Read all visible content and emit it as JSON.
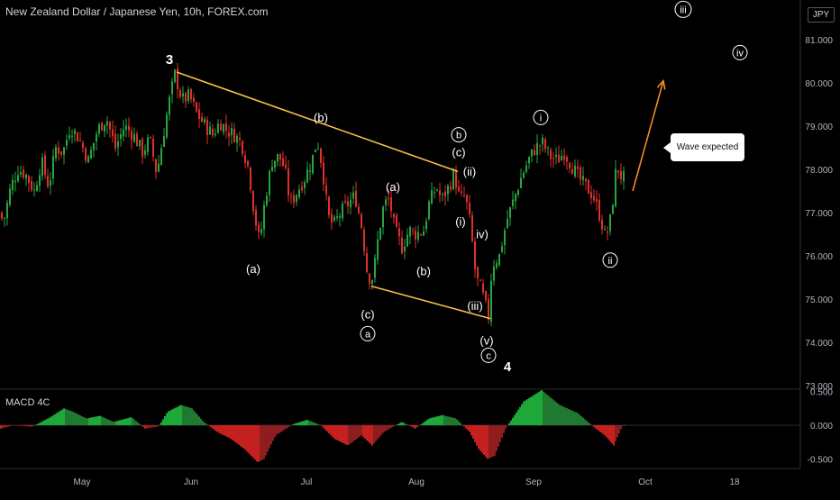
{
  "header": {
    "title": "New Zealand Dollar / Japanese Yen, 10h, FOREX.com",
    "currency": "JPY",
    "indicator": "MACD 4C"
  },
  "callout": {
    "text": "Wave expected"
  },
  "colors": {
    "up": "#26a641",
    "down": "#e0302a",
    "trendline": "#f5c342",
    "arrow": "#f08a24",
    "macd_up": "#1ea83a",
    "macd_down": "#c42020"
  },
  "chart_data": [
    {
      "type": "candlestick",
      "title": "New Zealand Dollar / Japanese Yen, 10h, FOREX.com",
      "y_axis": {
        "ticks": [
          "81.000",
          "80.000",
          "79.000",
          "78.000",
          "77.000",
          "76.000",
          "75.000",
          "74.000",
          "73.000"
        ],
        "range": [
          73.0,
          81.9
        ]
      },
      "x_axis": {
        "ticks": [
          "May",
          "Jun",
          "Jul",
          "Aug",
          "Sep",
          "Oct",
          "18"
        ]
      },
      "path_points": [
        [
          0,
          77.0
        ],
        [
          6,
          76.8
        ],
        [
          14,
          77.6
        ],
        [
          22,
          78.0
        ],
        [
          30,
          77.9
        ],
        [
          40,
          77.5
        ],
        [
          48,
          78.2
        ],
        [
          56,
          77.6
        ],
        [
          64,
          78.5
        ],
        [
          72,
          78.4
        ],
        [
          80,
          79.0
        ],
        [
          90,
          78.7
        ],
        [
          100,
          78.2
        ],
        [
          110,
          78.9
        ],
        [
          120,
          79.2
        ],
        [
          130,
          78.5
        ],
        [
          140,
          79.0
        ],
        [
          150,
          78.8
        ],
        [
          160,
          78.4
        ],
        [
          168,
          78.7
        ],
        [
          176,
          77.9
        ],
        [
          184,
          78.9
        ],
        [
          190,
          79.6
        ],
        [
          196,
          80.2
        ],
        [
          204,
          79.6
        ],
        [
          212,
          79.7
        ],
        [
          220,
          79.3
        ],
        [
          230,
          79.0
        ],
        [
          238,
          78.8
        ],
        [
          246,
          79.1
        ],
        [
          254,
          78.9
        ],
        [
          262,
          78.8
        ],
        [
          270,
          78.6
        ],
        [
          278,
          78.0
        ],
        [
          284,
          77.0
        ],
        [
          290,
          76.3
        ],
        [
          296,
          77.3
        ],
        [
          304,
          78.2
        ],
        [
          312,
          78.3
        ],
        [
          318,
          78.0
        ],
        [
          324,
          77.2
        ],
        [
          332,
          77.5
        ],
        [
          340,
          77.8
        ],
        [
          348,
          78.2
        ],
        [
          354,
          78.7
        ],
        [
          360,
          78.0
        ],
        [
          366,
          76.9
        ],
        [
          372,
          76.7
        ],
        [
          380,
          77.0
        ],
        [
          388,
          77.2
        ],
        [
          396,
          77.4
        ],
        [
          404,
          76.6
        ],
        [
          410,
          75.5
        ],
        [
          416,
          75.5
        ],
        [
          422,
          76.5
        ],
        [
          428,
          77.2
        ],
        [
          434,
          77.3
        ],
        [
          440,
          76.6
        ],
        [
          448,
          76.2
        ],
        [
          456,
          76.6
        ],
        [
          464,
          76.5
        ],
        [
          472,
          76.6
        ],
        [
          478,
          77.2
        ],
        [
          486,
          77.6
        ],
        [
          492,
          77.3
        ],
        [
          500,
          77.6
        ],
        [
          506,
          77.9
        ],
        [
          512,
          77.3
        ],
        [
          518,
          77.4
        ],
        [
          524,
          76.7
        ],
        [
          530,
          75.5
        ],
        [
          536,
          75.2
        ],
        [
          540,
          74.9
        ],
        [
          544,
          74.6
        ],
        [
          548,
          75.8
        ],
        [
          556,
          76.0
        ],
        [
          564,
          76.8
        ],
        [
          572,
          77.3
        ],
        [
          580,
          77.8
        ],
        [
          588,
          78.2
        ],
        [
          596,
          78.5
        ],
        [
          604,
          78.6
        ],
        [
          612,
          78.3
        ],
        [
          620,
          78.2
        ],
        [
          628,
          78.4
        ],
        [
          636,
          78.1
        ],
        [
          644,
          77.8
        ],
        [
          652,
          77.6
        ],
        [
          660,
          77.4
        ],
        [
          668,
          76.9
        ],
        [
          674,
          76.4
        ],
        [
          680,
          76.9
        ],
        [
          686,
          78.1
        ],
        [
          692,
          77.8
        ]
      ],
      "trendlines": [
        {
          "from": [
            196,
            80.25
          ],
          "to": [
            508,
            77.95
          ]
        },
        {
          "from": [
            412,
            75.3
          ],
          "to": [
            544,
            74.55
          ]
        }
      ],
      "projection_arrow": {
        "from": [
          702,
          77.5
        ],
        "to": [
          736,
          80.05
        ]
      },
      "annotations": [
        {
          "text": "3",
          "x": 188,
          "y": 80.55,
          "circled": false,
          "big": true
        },
        {
          "text": "(b)",
          "x": 356,
          "y": 79.2,
          "circled": false
        },
        {
          "text": "b",
          "x": 509,
          "y": 78.8,
          "circled": true
        },
        {
          "text": "(c)",
          "x": 509,
          "y": 78.4,
          "circled": false
        },
        {
          "text": "(ii)",
          "x": 521,
          "y": 77.95,
          "circled": false
        },
        {
          "text": "(a)",
          "x": 436,
          "y": 77.6,
          "circled": false
        },
        {
          "text": "(i)",
          "x": 511,
          "y": 76.8,
          "circled": false
        },
        {
          "text": "iv)",
          "x": 535,
          "y": 76.5,
          "circled": false
        },
        {
          "text": "(a)",
          "x": 281,
          "y": 75.7,
          "circled": false
        },
        {
          "text": "(b)",
          "x": 470,
          "y": 75.65,
          "circled": false
        },
        {
          "text": "(iii)",
          "x": 527,
          "y": 74.85,
          "circled": false
        },
        {
          "text": "(c)",
          "x": 408,
          "y": 74.65,
          "circled": false
        },
        {
          "text": "a",
          "x": 408,
          "y": 74.2,
          "circled": true
        },
        {
          "text": "(v)",
          "x": 540,
          "y": 74.05,
          "circled": false
        },
        {
          "text": "c",
          "x": 542,
          "y": 73.7,
          "circled": true
        },
        {
          "text": "4",
          "x": 563,
          "y": 73.45,
          "circled": false,
          "big": true
        },
        {
          "text": "i",
          "x": 600,
          "y": 79.2,
          "circled": true
        },
        {
          "text": "ii",
          "x": 677,
          "y": 75.9,
          "circled": true
        },
        {
          "text": "iii",
          "x": 758,
          "y": 81.7,
          "circled": true
        },
        {
          "text": "iv",
          "x": 821,
          "y": 80.7,
          "circled": true
        }
      ]
    },
    {
      "type": "bar",
      "title": "MACD 4C",
      "y_axis": {
        "ticks": [
          "0.500",
          "0.000",
          "-0.500"
        ],
        "range": [
          -0.62,
          0.56
        ]
      },
      "x": [
        0,
        15,
        35,
        55,
        70,
        80,
        95,
        110,
        125,
        145,
        160,
        175,
        185,
        200,
        212,
        225,
        240,
        255,
        270,
        285,
        292,
        305,
        325,
        340,
        355,
        370,
        385,
        400,
        412,
        425,
        445,
        460,
        475,
        490,
        505,
        520,
        530,
        540,
        548,
        560,
        580,
        600,
        620,
        640,
        660,
        670,
        680,
        690
      ],
      "values": [
        -0.05,
        0.0,
        -0.02,
        0.12,
        0.25,
        0.2,
        0.1,
        0.14,
        0.05,
        0.12,
        -0.05,
        -0.02,
        0.2,
        0.3,
        0.25,
        0.05,
        -0.1,
        -0.2,
        -0.35,
        -0.55,
        -0.5,
        -0.15,
        0.02,
        0.08,
        0.0,
        -0.2,
        -0.3,
        -0.15,
        -0.3,
        -0.1,
        0.05,
        -0.05,
        0.1,
        0.15,
        0.1,
        -0.1,
        -0.35,
        -0.5,
        -0.45,
        -0.05,
        0.35,
        0.52,
        0.3,
        0.18,
        -0.05,
        -0.15,
        -0.3,
        0.0
      ]
    }
  ]
}
